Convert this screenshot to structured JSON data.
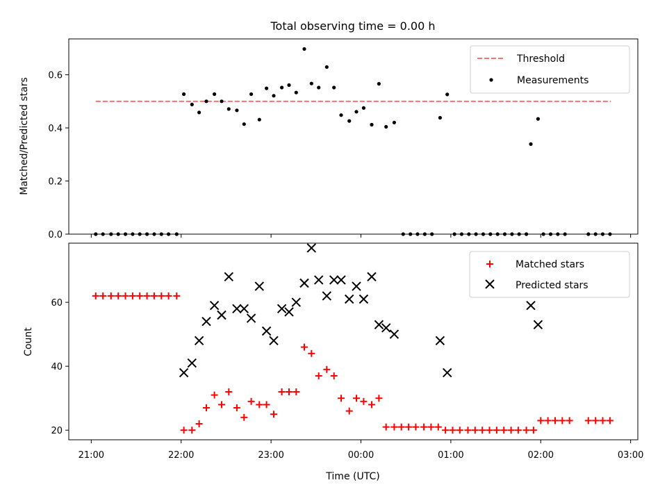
{
  "chart_data": [
    {
      "type": "scatter",
      "title": "Total observing time = 0.00 h",
      "ylabel": "Matched/Predicted stars",
      "ylim": [
        0,
        0.735
      ],
      "yticks": [
        "0.0",
        "0.2",
        "0.4",
        "0.6"
      ],
      "ytick_values": [
        0,
        0.2,
        0.4,
        0.6
      ],
      "xlim": [
        -0.25,
        6.08
      ],
      "threshold": {
        "name": "Threshold",
        "value": 0.5,
        "x_range": [
          0.05,
          5.78
        ],
        "color": "#ff7070"
      },
      "series": [
        {
          "name": "Measurements",
          "color": "#000000",
          "points": [
            [
              0.05,
              0
            ],
            [
              0.13,
              0
            ],
            [
              0.22,
              0
            ],
            [
              0.3,
              0
            ],
            [
              0.38,
              0
            ],
            [
              0.46,
              0
            ],
            [
              0.54,
              0
            ],
            [
              0.62,
              0
            ],
            [
              0.7,
              0
            ],
            [
              0.78,
              0
            ],
            [
              0.86,
              0
            ],
            [
              0.95,
              0
            ],
            [
              1.03,
              0.527
            ],
            [
              1.12,
              0.488
            ],
            [
              1.2,
              0.458
            ],
            [
              1.28,
              0.5
            ],
            [
              1.37,
              0.527
            ],
            [
              1.45,
              0.5
            ],
            [
              1.53,
              0.471
            ],
            [
              1.62,
              0.466
            ],
            [
              1.7,
              0.414
            ],
            [
              1.78,
              0.527
            ],
            [
              1.87,
              0.431
            ],
            [
              1.95,
              0.549
            ],
            [
              2.03,
              0.521
            ],
            [
              2.12,
              0.552
            ],
            [
              2.2,
              0.561
            ],
            [
              2.28,
              0.533
            ],
            [
              2.37,
              0.697
            ],
            [
              2.45,
              0.567
            ],
            [
              2.53,
              0.552
            ],
            [
              2.62,
              0.629
            ],
            [
              2.7,
              0.552
            ],
            [
              2.78,
              0.448
            ],
            [
              2.87,
              0.426
            ],
            [
              2.95,
              0.461
            ],
            [
              3.03,
              0.475
            ],
            [
              3.12,
              0.412
            ],
            [
              3.2,
              0.566
            ],
            [
              3.28,
              0.404
            ],
            [
              3.37,
              0.42
            ],
            [
              3.47,
              0
            ],
            [
              3.55,
              0
            ],
            [
              3.63,
              0
            ],
            [
              3.71,
              0
            ],
            [
              3.79,
              0
            ],
            [
              3.88,
              0.438
            ],
            [
              3.96,
              0.526
            ],
            [
              4.04,
              0
            ],
            [
              4.12,
              0
            ],
            [
              4.2,
              0
            ],
            [
              4.28,
              0
            ],
            [
              4.36,
              0
            ],
            [
              4.44,
              0
            ],
            [
              4.52,
              0
            ],
            [
              4.6,
              0
            ],
            [
              4.68,
              0
            ],
            [
              4.76,
              0
            ],
            [
              4.84,
              0
            ],
            [
              4.89,
              0.339
            ],
            [
              4.97,
              0.434
            ],
            [
              5.03,
              0
            ],
            [
              5.11,
              0
            ],
            [
              5.19,
              0
            ],
            [
              5.27,
              0
            ],
            [
              5.53,
              0
            ],
            [
              5.61,
              0
            ],
            [
              5.69,
              0
            ],
            [
              5.77,
              0
            ]
          ]
        }
      ],
      "legend_position": "top-right"
    },
    {
      "type": "scatter",
      "xlabel": "Time (UTC)",
      "ylabel": "Count",
      "ylim": [
        17,
        78.5
      ],
      "yticks": [
        "20",
        "40",
        "60"
      ],
      "ytick_values": [
        20,
        40,
        60
      ],
      "xlim": [
        -0.25,
        6.08
      ],
      "xticks": [
        "21:00",
        "22:00",
        "23:00",
        "00:00",
        "01:00",
        "02:00",
        "03:00"
      ],
      "xtick_values": [
        0,
        1,
        2,
        3,
        4,
        5,
        6
      ],
      "series": [
        {
          "name": "Matched stars",
          "marker": "plus",
          "color": "#ff0000",
          "points": [
            [
              0.05,
              62
            ],
            [
              0.13,
              62
            ],
            [
              0.22,
              62
            ],
            [
              0.3,
              62
            ],
            [
              0.38,
              62
            ],
            [
              0.46,
              62
            ],
            [
              0.54,
              62
            ],
            [
              0.62,
              62
            ],
            [
              0.7,
              62
            ],
            [
              0.78,
              62
            ],
            [
              0.86,
              62
            ],
            [
              0.95,
              62
            ],
            [
              1.03,
              20
            ],
            [
              1.12,
              20
            ],
            [
              1.2,
              22
            ],
            [
              1.28,
              27
            ],
            [
              1.37,
              31
            ],
            [
              1.45,
              28
            ],
            [
              1.53,
              32
            ],
            [
              1.62,
              27
            ],
            [
              1.7,
              24
            ],
            [
              1.78,
              29
            ],
            [
              1.87,
              28
            ],
            [
              1.95,
              28
            ],
            [
              2.03,
              25
            ],
            [
              2.12,
              32
            ],
            [
              2.2,
              32
            ],
            [
              2.28,
              32
            ],
            [
              2.37,
              46
            ],
            [
              2.45,
              44
            ],
            [
              2.53,
              37
            ],
            [
              2.62,
              39
            ],
            [
              2.7,
              37
            ],
            [
              2.78,
              30
            ],
            [
              2.87,
              26
            ],
            [
              2.95,
              30
            ],
            [
              3.03,
              29
            ],
            [
              3.12,
              28
            ],
            [
              3.2,
              30
            ],
            [
              3.28,
              21
            ],
            [
              3.37,
              21
            ],
            [
              3.45,
              21
            ],
            [
              3.53,
              21
            ],
            [
              3.61,
              21
            ],
            [
              3.7,
              21
            ],
            [
              3.78,
              21
            ],
            [
              3.86,
              21
            ],
            [
              3.94,
              20
            ],
            [
              4.02,
              20
            ],
            [
              4.1,
              20
            ],
            [
              4.19,
              20
            ],
            [
              4.27,
              20
            ],
            [
              4.35,
              20
            ],
            [
              4.43,
              20
            ],
            [
              4.51,
              20
            ],
            [
              4.59,
              20
            ],
            [
              4.67,
              20
            ],
            [
              4.75,
              20
            ],
            [
              4.84,
              20
            ],
            [
              4.92,
              20
            ],
            [
              5.0,
              23
            ],
            [
              5.08,
              23
            ],
            [
              5.16,
              23
            ],
            [
              5.24,
              23
            ],
            [
              5.32,
              23
            ],
            [
              5.53,
              23
            ],
            [
              5.61,
              23
            ],
            [
              5.69,
              23
            ],
            [
              5.77,
              23
            ]
          ]
        },
        {
          "name": "Predicted stars",
          "marker": "x",
          "color": "#000000",
          "points": [
            [
              1.03,
              38
            ],
            [
              1.12,
              41
            ],
            [
              1.2,
              48
            ],
            [
              1.28,
              54
            ],
            [
              1.37,
              59
            ],
            [
              1.45,
              56
            ],
            [
              1.53,
              68
            ],
            [
              1.62,
              58
            ],
            [
              1.7,
              58
            ],
            [
              1.78,
              55
            ],
            [
              1.87,
              65
            ],
            [
              1.95,
              51
            ],
            [
              2.03,
              48
            ],
            [
              2.12,
              58
            ],
            [
              2.2,
              57
            ],
            [
              2.28,
              60
            ],
            [
              2.37,
              66
            ],
            [
              2.45,
              77
            ],
            [
              2.53,
              67
            ],
            [
              2.62,
              62
            ],
            [
              2.7,
              67
            ],
            [
              2.78,
              67
            ],
            [
              2.87,
              61
            ],
            [
              2.95,
              65
            ],
            [
              3.03,
              61
            ],
            [
              3.12,
              68
            ],
            [
              3.2,
              53
            ],
            [
              3.28,
              52
            ],
            [
              3.37,
              50
            ],
            [
              3.88,
              48
            ],
            [
              3.96,
              38
            ],
            [
              4.89,
              59
            ],
            [
              4.97,
              53
            ]
          ]
        }
      ],
      "legend_position": "top-right"
    }
  ]
}
